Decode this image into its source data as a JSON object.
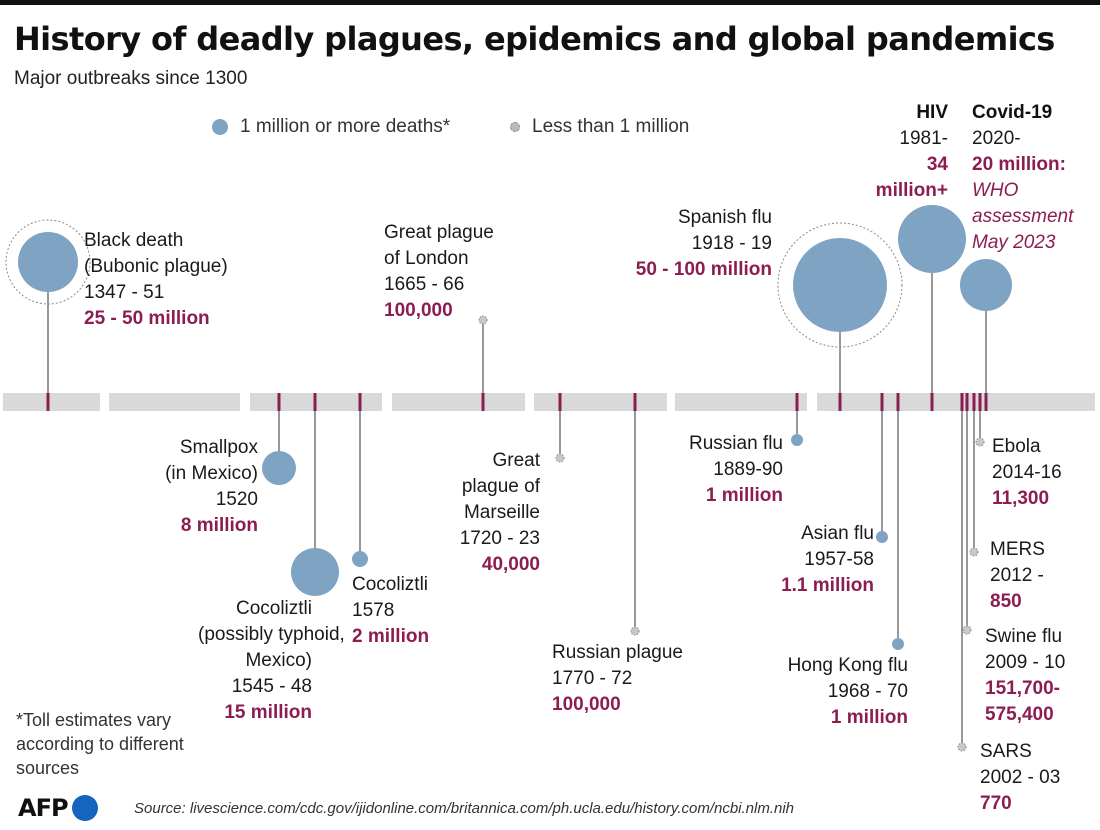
{
  "title": "History of deadly plagues, epidemics and global pandemics",
  "subtitle": "Major outbreaks since 1300",
  "legend": {
    "big": "1 million or more deaths*",
    "small": "Less than 1 million"
  },
  "footnote": "*Toll estimates vary according to different sources",
  "source": "Source: livescience.com/cdc.gov/ijidonline.com/britannica.com/ph.ucla.edu/history.com/ncbi.nlm.nih",
  "logo": "AFP",
  "colors": {
    "bubble": "#7fa3c3",
    "tick": "#8c1d52",
    "bar": "#d9d9d9",
    "deaths": "#8c1d52"
  },
  "chart_data": {
    "type": "scatter",
    "title": "History of deadly plagues, epidemics and global pandemics",
    "x_axis": "year (non-linear timeline)",
    "events": [
      {
        "name": "Black death",
        "name2": "(Bubonic plague)",
        "years": "1347 - 51",
        "start_year": 1347,
        "deaths": "25 - 50 million",
        "deaths_estimate_millions": 37.5,
        "category": "1 million or more deaths"
      },
      {
        "name": "Smallpox",
        "name2": "(in Mexico)",
        "years": "1520",
        "start_year": 1520,
        "deaths": "8 million",
        "deaths_estimate_millions": 8,
        "category": "1 million or more deaths"
      },
      {
        "name": "Cocoliztli",
        "name2": "(possibly typhoid,",
        "name3": "Mexico)",
        "years": "1545 - 48",
        "start_year": 1545,
        "deaths": "15 million",
        "deaths_estimate_millions": 15,
        "category": "1 million or more deaths"
      },
      {
        "name": "Cocoliztli",
        "years": "1578",
        "start_year": 1578,
        "deaths": "2 million",
        "deaths_estimate_millions": 2,
        "category": "1 million or more deaths"
      },
      {
        "name": "Great plague",
        "name2": "of London",
        "years": "1665 - 66",
        "start_year": 1665,
        "deaths": "100,000",
        "deaths_estimate_millions": 0.1,
        "category": "Less than 1 million"
      },
      {
        "name": "Great",
        "name2": "plague of",
        "name3": "Marseille",
        "years": "1720 - 23",
        "start_year": 1720,
        "deaths": "40,000",
        "deaths_estimate_millions": 0.04,
        "category": "Less than 1 million"
      },
      {
        "name": "Russian plague",
        "years": "1770 - 72",
        "start_year": 1770,
        "deaths": "100,000",
        "deaths_estimate_millions": 0.1,
        "category": "Less than 1 million"
      },
      {
        "name": "Russian flu",
        "years": "1889-90",
        "start_year": 1889,
        "deaths": "1 million",
        "deaths_estimate_millions": 1,
        "category": "1 million or more deaths"
      },
      {
        "name": "Spanish flu",
        "years": "1918 - 19",
        "start_year": 1918,
        "deaths": "50 - 100 million",
        "deaths_estimate_millions": 75,
        "category": "1 million or more deaths"
      },
      {
        "name": "Asian flu",
        "years": "1957-58",
        "start_year": 1957,
        "deaths": "1.1 million",
        "deaths_estimate_millions": 1.1,
        "category": "1 million or more deaths"
      },
      {
        "name": "Hong Kong flu",
        "years": "1968 - 70",
        "start_year": 1968,
        "deaths": "1 million",
        "deaths_estimate_millions": 1,
        "category": "1 million or more deaths"
      },
      {
        "name": "HIV",
        "years": "1981-",
        "start_year": 1981,
        "deaths": "34",
        "deaths2": "million+",
        "deaths_estimate_millions": 34,
        "category": "1 million or more deaths"
      },
      {
        "name": "SARS",
        "years": "2002 - 03",
        "start_year": 2002,
        "deaths": "770",
        "deaths_estimate_millions": 0.00077,
        "category": "Less than 1 million"
      },
      {
        "name": "Swine flu",
        "years": "2009 - 10",
        "start_year": 2009,
        "deaths": "151,700-",
        "deaths2": "575,400",
        "deaths_estimate_millions": 0.36,
        "category": "Less than 1 million"
      },
      {
        "name": "MERS",
        "years": "2012 -",
        "start_year": 2012,
        "deaths": "850",
        "deaths_estimate_millions": 0.00085,
        "category": "Less than 1 million"
      },
      {
        "name": "Ebola",
        "years": "2014-16",
        "start_year": 2014,
        "deaths": "11,300",
        "deaths_estimate_millions": 0.0113,
        "category": "Less than 1 million"
      },
      {
        "name": "Covid-19",
        "years": "2020-",
        "start_year": 2020,
        "deaths": "20 million:",
        "note": [
          "WHO",
          "assessment",
          "May 2023"
        ],
        "deaths_estimate_millions": 20,
        "category": "1 million or more deaths"
      }
    ]
  }
}
